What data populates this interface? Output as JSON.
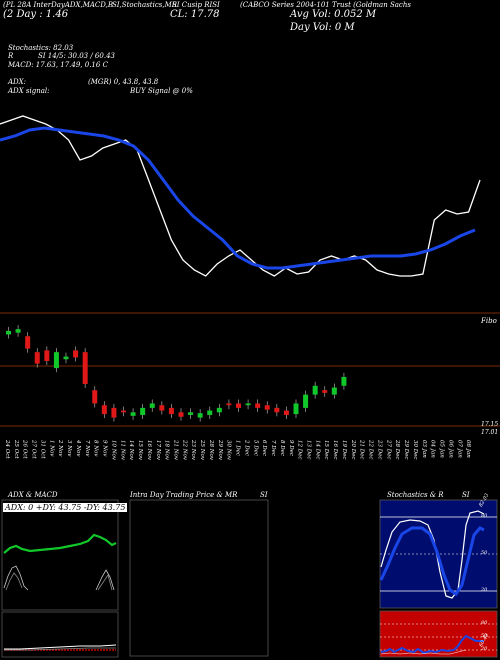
{
  "header": {
    "ticker_line": "(PL 28A InterDayADX,MACD,B",
    "stoch_line": "SI,Stochastics,MR",
    "ticker_sym": "SI Cusip",
    "ticker_code": "RISI",
    "company_line": "(CABCO Series 2004-101 Trust (Goldman Sachs",
    "day_change": "(2  Day : 1.46",
    "close": "CL: 17.78",
    "avg_vol": "Avg Vol: 0.052  M",
    "day_vol": "Day Vol: 0   M",
    "stochastics": "Stochastics: 82.03",
    "r_label": "R",
    "si": "SI 14/5: 30.03 / 60.43",
    "macd": "MACD: 17.63,  17.49,  0.16  C",
    "adx": "ADX:",
    "mgr": "(MGR) 0,  43.8,  43.8",
    "adx_signal": "ADX  signal:",
    "buy_signal": "BUY Signal @ 0%"
  },
  "price_labels": {
    "upper": "Fibo",
    "lower1": "17.15",
    "lower2": "17.01"
  },
  "dates": [
    "24 Oct",
    "25 Oct",
    "26 Oct",
    "27 Oct",
    "31 Oct",
    "1 Nov",
    "2 Nov",
    "3 Nov",
    "4 Nov",
    "7 Nov",
    "8 Nov",
    "9 Nov",
    "10 Nov",
    "11 Nov",
    "14 Nov",
    "15 Nov",
    "16 Nov",
    "17 Nov",
    "18 Nov",
    "21 Nov",
    "22 Nov",
    "23 Nov",
    "25 Nov",
    "28 Nov",
    "29 Nov",
    "30 Nov",
    "1 Dec",
    "2 Dec",
    "5 Dec",
    "6 Dec",
    "7 Dec",
    "8 Dec",
    "9 Dec",
    "12 Dec",
    "13 Dec",
    "14 Dec",
    "15 Dec",
    "16 Dec",
    "19 Dec",
    "20 Dec",
    "21 Dec",
    "22 Dec",
    "23 Dec",
    "27 Dec",
    "28 Dec",
    "29 Dec",
    "30 Dec",
    "03 Jan",
    "04 Jan",
    "05 Jan",
    "06 Jan",
    "07 Jan",
    "08 Jan"
  ],
  "panels": {
    "adx_title": "ADX  & MACD",
    "adx_readout": "ADX: 0   +DY: 43.75  -DY: 43.75",
    "intra_title": "Intra  Day Trading Price  & MR",
    "intra_si": "SI",
    "stoch_title": "Stochastics & R",
    "stoch_si": "SI",
    "stoch_levels": [
      "80",
      "50",
      "20"
    ],
    "si_levels": [
      "80",
      "50",
      "20"
    ],
    "stoch_tag": "82.03",
    "si_tag": "60.43"
  },
  "colors": {
    "blue_ma": "#1a46e8",
    "up": "#11c82a",
    "down": "#e01818",
    "grid": "#7a2a00",
    "panel_blue": "#000d6e",
    "panel_red": "#c40000"
  },
  "chart_data": {
    "type": "candlestick",
    "close_line": [
      17.78,
      17.8,
      17.82,
      17.8,
      17.78,
      17.75,
      17.7,
      17.6,
      17.62,
      17.66,
      17.68,
      17.7,
      17.65,
      17.5,
      17.35,
      17.2,
      17.1,
      17.05,
      17.02,
      17.08,
      17.12,
      17.15,
      17.1,
      17.05,
      17.02,
      17.06,
      17.03,
      17.04,
      17.1,
      17.12,
      17.1,
      17.12,
      17.1,
      17.05,
      17.03,
      17.02,
      17.02,
      17.03,
      17.3,
      17.35,
      17.33,
      17.34,
      17.5
    ],
    "blue_ma": [
      17.7,
      17.72,
      17.75,
      17.76,
      17.75,
      17.74,
      17.73,
      17.72,
      17.7,
      17.67,
      17.6,
      17.5,
      17.4,
      17.32,
      17.26,
      17.2,
      17.12,
      17.08,
      17.06,
      17.06,
      17.07,
      17.08,
      17.09,
      17.1,
      17.11,
      17.12,
      17.12,
      17.12,
      17.13,
      17.15,
      17.18,
      17.22,
      17.25
    ],
    "candles_open": [
      17.38,
      17.4,
      17.36,
      17.18,
      17.2,
      17.0,
      17.1,
      17.2,
      17.18,
      16.75,
      16.58,
      16.55,
      16.52,
      16.46,
      16.47,
      16.55,
      16.58,
      16.55,
      16.5,
      16.47,
      16.44,
      16.47,
      16.5,
      16.6,
      16.6,
      16.58,
      16.6,
      16.58,
      16.55,
      16.52,
      16.48,
      16.55,
      16.7,
      16.75,
      16.7,
      16.8
    ],
    "candles_close": [
      17.42,
      17.44,
      17.22,
      17.05,
      17.08,
      17.18,
      17.13,
      17.12,
      16.82,
      16.6,
      16.48,
      16.44,
      16.5,
      16.5,
      16.55,
      16.6,
      16.52,
      16.48,
      16.45,
      16.5,
      16.49,
      16.52,
      16.55,
      16.58,
      16.55,
      16.6,
      16.55,
      16.53,
      16.5,
      16.47,
      16.6,
      16.7,
      16.8,
      16.72,
      16.78,
      16.9
    ],
    "ylim": [
      16.3,
      17.6
    ]
  }
}
